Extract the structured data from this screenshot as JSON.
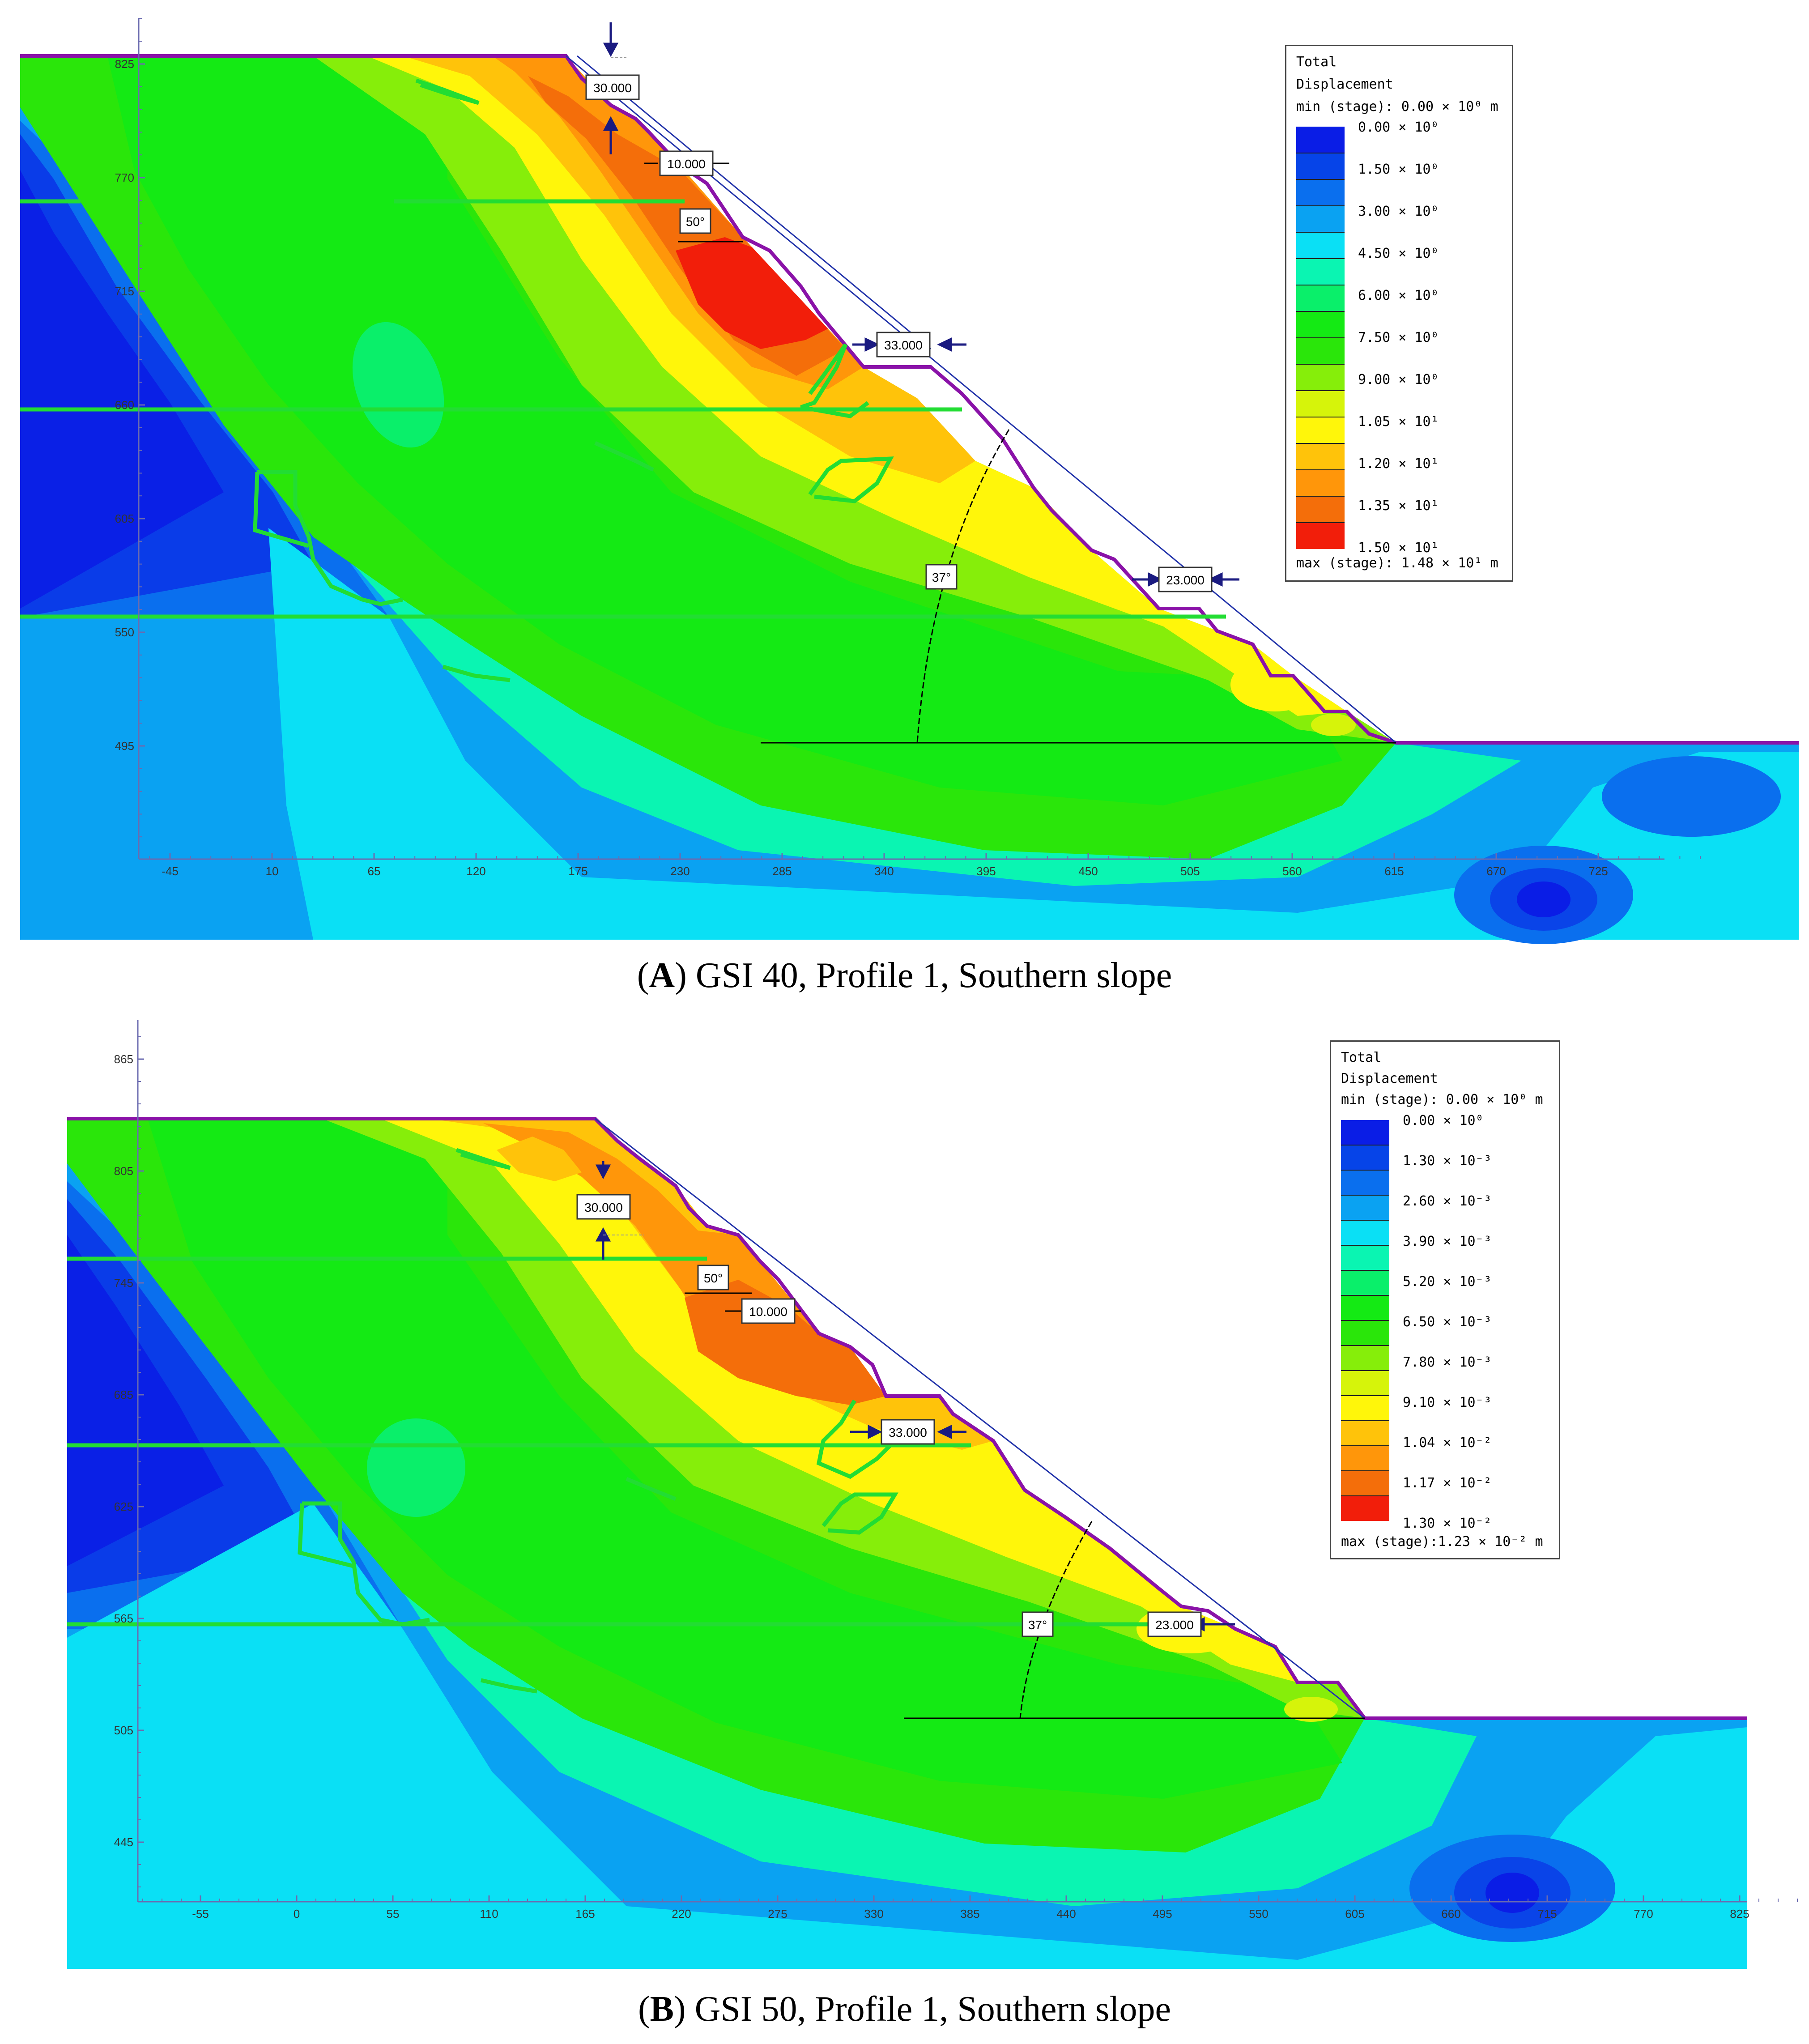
{
  "panels": [
    {
      "id": "A",
      "caption_letter": "A",
      "caption_text": ") GSI 40, Profile 1, Southern slope",
      "x_ticks": [
        "-45",
        "10",
        "65",
        "120",
        "175",
        "230",
        "285",
        "340",
        "395",
        "450",
        "505",
        "560",
        "615",
        "670",
        "725"
      ],
      "y_ticks": [
        "825",
        "770",
        "715",
        "660",
        "605",
        "550",
        "495"
      ],
      "annotations": {
        "top_setback": "30.000",
        "bench1": "10.000",
        "face_angle": "50°",
        "mid_bench": "33.000",
        "overall_angle": "37°",
        "lower_bench": "23.000"
      },
      "legend": {
        "title1": "Total",
        "title2": "Displacement",
        "min_line": "min (stage): 0.00 × 10⁰ m",
        "max_line": "max (stage): 1.48 × 10¹ m",
        "levels": [
          "0.00 × 10⁰",
          "1.50 × 10⁰",
          "3.00 × 10⁰",
          "4.50 × 10⁰",
          "6.00 × 10⁰",
          "7.50 × 10⁰",
          "9.00 × 10⁰",
          "1.05 × 10¹",
          "1.20 × 10¹",
          "1.35 × 10¹",
          "1.50 × 10¹"
        ]
      }
    },
    {
      "id": "B",
      "caption_letter": "B",
      "caption_text": ") GSI 50, Profile 1, Southern slope",
      "x_ticks": [
        "-55",
        "0",
        "55",
        "110",
        "165",
        "220",
        "275",
        "330",
        "385",
        "440",
        "495",
        "550",
        "605",
        "660",
        "715",
        "770",
        "825"
      ],
      "y_ticks": [
        "865",
        "805",
        "745",
        "685",
        "625",
        "565",
        "505",
        "445"
      ],
      "annotations": {
        "top_setback": "30.000",
        "bench1": "10.000",
        "face_angle": "50°",
        "mid_bench": "33.000",
        "overall_angle": "37°",
        "lower_bench": "23.000"
      },
      "legend": {
        "title1": "Total",
        "title2": "Displacement",
        "min_line": "min (stage): 0.00 × 10⁰ m",
        "max_line": "max (stage):1.23 × 10⁻² m",
        "levels": [
          "0.00 × 10⁰",
          "1.30 × 10⁻³",
          "2.60 × 10⁻³",
          "3.90 × 10⁻³",
          "5.20 × 10⁻³",
          "6.50 × 10⁻³",
          "7.80 × 10⁻³",
          "9.10 × 10⁻³",
          "1.04 × 10⁻²",
          "1.17 × 10⁻²",
          "1.30 × 10⁻²"
        ]
      }
    }
  ],
  "legend_colors": [
    "#0a1de6",
    "#0644e8",
    "#0a6fee",
    "#0aa2f2",
    "#0ae0f5",
    "#0af5b2",
    "#0aef6a",
    "#14ea14",
    "#2ae60a",
    "#86ee0a",
    "#d6f40a",
    "#fff60a",
    "#ffc30a",
    "#ff960a",
    "#f46e0a",
    "#f21e0a"
  ],
  "colors": {
    "boundary": "#8a12a8",
    "joint": "#22dd33",
    "guide": "#2233aa",
    "text": "#000000"
  }
}
